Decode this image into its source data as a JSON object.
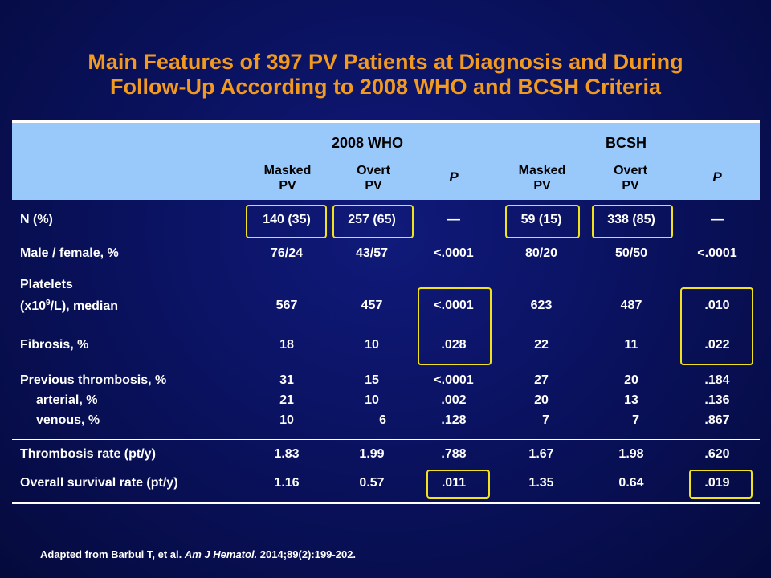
{
  "title": {
    "line1": "Main Features of 397 PV Patients at Diagnosis and During",
    "line2": "Follow-Up According to 2008 WHO and BCSH Criteria"
  },
  "groups": {
    "who": "2008 WHO",
    "bcsh": "BCSH"
  },
  "subheads": {
    "masked_1": "Masked",
    "masked_2": "PV",
    "overt_1": "Overt",
    "overt_2": "PV",
    "p": "P"
  },
  "rows": {
    "n": {
      "label": "N (%)",
      "values": [
        "140 (35)",
        "257 (65)",
        "—",
        "59 (15)",
        "338 (85)",
        "—"
      ]
    },
    "sex": {
      "label": "Male / female, %",
      "values": [
        "76/24",
        "43/57",
        "<.0001",
        "80/20",
        "50/50",
        "<.0001"
      ]
    },
    "platelets": {
      "label_1": "Platelets",
      "label_2a": "(x10",
      "label_sup": "9",
      "label_2b": "/L), median",
      "values": [
        "567",
        "457",
        "<.0001",
        "623",
        "487",
        ".010"
      ]
    },
    "fibrosis": {
      "label": "Fibrosis, %",
      "values": [
        "18",
        "10",
        ".028",
        "22",
        "11",
        ".022"
      ]
    },
    "prev_thrombosis": {
      "label": "Previous thrombosis, %",
      "values": [
        "31",
        "15",
        "<.0001",
        "27",
        "20",
        ".184"
      ]
    },
    "arterial": {
      "label": "arterial, %",
      "values": [
        "21",
        "10",
        ".002",
        "20",
        "13",
        ".136"
      ]
    },
    "venous": {
      "label": "venous, %",
      "values": [
        "10",
        "6",
        ".128",
        "7",
        "7",
        ".867"
      ]
    },
    "thrombosis_rate": {
      "label": "Thrombosis rate (pt/y)",
      "values": [
        "1.83",
        "1.99",
        ".788",
        "1.67",
        "1.98",
        ".620"
      ]
    },
    "survival": {
      "label": "Overall survival rate (pt/y)",
      "values": [
        "1.16",
        "0.57",
        ".011",
        "1.35",
        "0.64",
        ".019"
      ]
    }
  },
  "footer": {
    "prefix": "Adapted from Barbui T, et al. ",
    "journal": "Am J Hematol.",
    "suffix": " 2014;89(2):199-202."
  },
  "colors": {
    "background": "#0a1260",
    "title": "#f29a1f",
    "header": "#99c9fb",
    "highlight": "#f2e21d"
  }
}
